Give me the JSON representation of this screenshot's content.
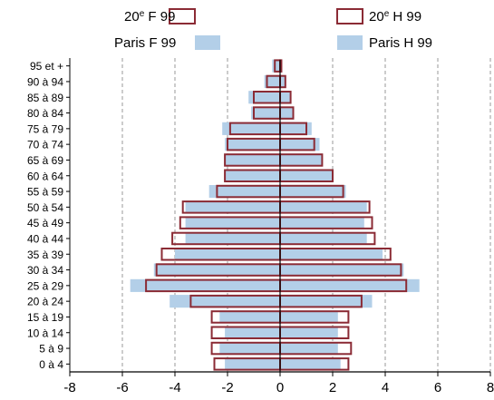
{
  "chart_data": {
    "type": "bar",
    "orientation": "horizontal",
    "layout": "population-pyramid",
    "title": "",
    "xlabel": "",
    "ylabel": "",
    "xlim": [
      -8,
      8
    ],
    "xticks": [
      -8,
      -6,
      -4,
      -2,
      0,
      2,
      4,
      6,
      8
    ],
    "grid": "vertical-dashed",
    "categories": [
      "0 à 4",
      "5 à 9",
      "10 à 14",
      "15 à 19",
      "20 à 24",
      "25 à 29",
      "30 à 34",
      "35 à 39",
      "40 à 44",
      "45 à 49",
      "50 à 54",
      "55 à 59",
      "60 à 64",
      "65 à 69",
      "70 à 74",
      "75 à 79",
      "80 à 84",
      "85 à 89",
      "90 à 94",
      "95 et +"
    ],
    "legend": {
      "placement": "top",
      "items": [
        {
          "key": "arr_f",
          "label_main": "20",
          "label_sup": "e",
          "label_rest": " F 99"
        },
        {
          "key": "arr_m",
          "label_main": "20",
          "label_sup": "e",
          "label_rest": " H 99"
        },
        {
          "key": "paris_f",
          "label_main": "Paris F 99",
          "label_sup": "",
          "label_rest": ""
        },
        {
          "key": "paris_m",
          "label_main": "Paris H 99",
          "label_sup": "",
          "label_rest": ""
        }
      ]
    },
    "series": [
      {
        "key": "paris_f",
        "side": "left",
        "style": "filled",
        "color": "#b3cfe8",
        "values": [
          -2.1,
          -2.3,
          -2.1,
          -2.3,
          -4.2,
          -5.7,
          -4.8,
          -4.0,
          -3.6,
          -3.6,
          -3.6,
          -2.7,
          -2.1,
          -2.1,
          -2.1,
          -2.2,
          -1.1,
          -1.2,
          -0.6,
          -0.3
        ]
      },
      {
        "key": "paris_m",
        "side": "right",
        "style": "filled",
        "color": "#b3cfe8",
        "values": [
          2.3,
          2.2,
          2.2,
          2.2,
          3.5,
          5.3,
          4.7,
          3.9,
          3.3,
          3.2,
          3.3,
          2.5,
          2.0,
          1.6,
          1.5,
          1.2,
          0.5,
          0.4,
          0.2,
          0.05
        ]
      },
      {
        "key": "arr_f",
        "side": "left",
        "style": "outline",
        "color": "#8b2b35",
        "values": [
          -2.5,
          -2.6,
          -2.6,
          -2.6,
          -3.4,
          -5.1,
          -4.7,
          -4.5,
          -4.1,
          -3.8,
          -3.7,
          -2.4,
          -2.1,
          -2.1,
          -2.0,
          -1.9,
          -1.0,
          -1.0,
          -0.5,
          -0.2
        ]
      },
      {
        "key": "arr_m",
        "side": "right",
        "style": "outline",
        "color": "#8b2b35",
        "values": [
          2.6,
          2.7,
          2.6,
          2.6,
          3.1,
          4.8,
          4.6,
          4.2,
          3.6,
          3.5,
          3.4,
          2.4,
          2.0,
          1.6,
          1.3,
          1.0,
          0.5,
          0.4,
          0.2,
          0.05
        ]
      }
    ]
  }
}
